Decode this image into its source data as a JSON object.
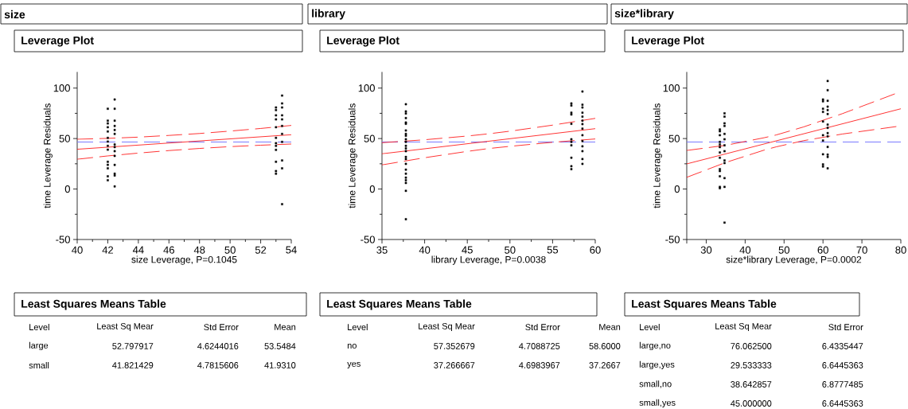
{
  "chart_data": [
    {
      "type": "scatter",
      "title": "size",
      "subtitle": "Leverage Plot",
      "xlabel": "size Leverage, P=0.1045",
      "ylabel": "time Leverage Residuals",
      "xlim": [
        40,
        54
      ],
      "xticks": [
        40,
        42,
        44,
        46,
        48,
        50,
        52,
        54
      ],
      "ylim": [
        -50,
        116
      ],
      "yticks": [
        -50,
        0,
        50,
        100
      ],
      "series": [
        {
          "marker": "square",
          "color": "#000000",
          "x": [
            42.0,
            42.0,
            42.0,
            42.0,
            42.0,
            42.0,
            42.0,
            42.0,
            42.0,
            42.0,
            42.0,
            42.0,
            42.0,
            42.0,
            42.45,
            42.45,
            42.45,
            42.45,
            42.45,
            42.45,
            42.45,
            42.45,
            42.45,
            42.45,
            42.45,
            42.45,
            42.45,
            42.45,
            53.0,
            53.0,
            53.0,
            53.0,
            53.0,
            53.0,
            53.0,
            53.0,
            53.0,
            53.0,
            53.0,
            53.0,
            53.4,
            53.4,
            53.4,
            53.4,
            53.4,
            53.4,
            53.4,
            53.4,
            53.4,
            53.4,
            53.4
          ],
          "values": [
            79.5,
            67.7,
            65,
            61.2,
            57,
            50.7,
            47,
            42.8,
            39,
            27,
            24,
            20.5,
            12.6,
            8.7,
            88.7,
            79.5,
            67.7,
            62.5,
            58.5,
            54.6,
            44.1,
            41.5,
            37.5,
            32.8,
            23.9,
            15.2,
            13.4,
            2.6,
            80.8,
            78.2,
            73,
            69,
            61.2,
            50.7,
            45.4,
            42.8,
            38.8,
            27,
            17.8,
            15.2,
            92.6,
            84.8,
            80.8,
            73,
            69,
            62.5,
            54.6,
            46.7,
            28.3,
            20.5,
            -15
          ]
        },
        {
          "type": "line",
          "color": "#ff0000",
          "x": [
            40,
            54
          ],
          "values": [
            39.4,
            53.8
          ]
        },
        {
          "type": "line",
          "color": "#ff0000",
          "line_style": "dashed",
          "x": [
            40,
            42,
            44,
            46,
            48,
            50,
            52,
            54
          ],
          "values": [
            49.3,
            50.2,
            51.4,
            53.1,
            55.0,
            57.4,
            60.0,
            63.0
          ]
        },
        {
          "type": "line",
          "color": "#ff0000",
          "line_style": "dashed",
          "x": [
            40,
            42,
            44,
            46,
            48,
            50,
            52,
            54
          ],
          "values": [
            29.5,
            32.8,
            35.6,
            38.1,
            40.2,
            42.0,
            43.4,
            44.6
          ]
        }
      ],
      "ref_lines": [
        {
          "axis": "y",
          "value": 46.7,
          "color": "#7f7fff",
          "line_style": "dashed"
        }
      ],
      "annotations": [
        "Least Squares Means Table",
        "Level",
        "Least Sq Mear",
        "Std Error",
        "Mean",
        "large",
        "52.797917",
        "4.6244016",
        "53.5484",
        "small",
        "41.821429",
        "4.7815606",
        "41.9310"
      ]
    },
    {
      "type": "scatter",
      "title": "library",
      "subtitle": "Leverage Plot",
      "xlabel": "library Leverage, P=0.0038",
      "ylabel": "time Leverage Residuals",
      "xlim": [
        35,
        60
      ],
      "xticks": [
        35,
        40,
        45,
        50,
        55,
        60
      ],
      "ylim": [
        -50,
        116
      ],
      "yticks": [
        -50,
        0,
        50,
        100
      ],
      "series": [
        {
          "marker": "square",
          "color": "#000000",
          "x": [
            37.8,
            37.8,
            37.8,
            37.8,
            37.8,
            37.8,
            37.8,
            37.8,
            37.8,
            37.8,
            37.8,
            37.8,
            37.8,
            37.8,
            37.8,
            37.8,
            37.8,
            37.8,
            37.8,
            37.8,
            37.8,
            37.8,
            37.8,
            37.8,
            57.2,
            57.2,
            57.2,
            57.2,
            57.2,
            57.2,
            57.2,
            57.2,
            57.2,
            57.2,
            57.2,
            58.5,
            58.5,
            58.5,
            58.5,
            58.5,
            58.5,
            58.5,
            58.5,
            58.5,
            58.5,
            58.5,
            58.5,
            58.5,
            58.5
          ],
          "values": [
            84,
            76.9,
            74.8,
            70.3,
            65.9,
            64.6,
            58,
            54.6,
            52.8,
            49.3,
            46.7,
            42.8,
            40.2,
            37.5,
            31.8,
            29.7,
            24.9,
            19.2,
            15.2,
            11.3,
            8.7,
            6,
            -1.8,
            -29.9,
            84.8,
            82.7,
            75.6,
            73.8,
            64.6,
            49.3,
            46.7,
            43.3,
            31,
            22.6,
            19.7,
            96.6,
            83.5,
            80.8,
            75.6,
            71.7,
            67.7,
            64.3,
            59.8,
            53.3,
            47.5,
            42.3,
            37.5,
            29.7,
            24.9
          ]
        },
        {
          "type": "line",
          "color": "#ff0000",
          "x": [
            35,
            60
          ],
          "values": [
            34.9,
            59.8
          ]
        },
        {
          "type": "line",
          "color": "#ff0000",
          "line_style": "dashed",
          "x": [
            35,
            40,
            45,
            47.5,
            50,
            55,
            60
          ],
          "values": [
            45.9,
            48.8,
            52.5,
            54.7,
            57.3,
            63.3,
            70.0
          ]
        },
        {
          "type": "line",
          "color": "#ff0000",
          "line_style": "dashed",
          "x": [
            35,
            40,
            45,
            47.5,
            50,
            55,
            60
          ],
          "values": [
            23.9,
            31.0,
            37.3,
            40.1,
            42.3,
            46.3,
            49.6
          ]
        }
      ],
      "ref_lines": [
        {
          "axis": "y",
          "value": 46.7,
          "color": "#7f7fff",
          "line_style": "dashed"
        }
      ],
      "annotations": [
        "Least Squares Means Table",
        "Level",
        "Least Sq Mear",
        "Std Error",
        "Mean",
        "no",
        "57.352679",
        "4.7088725",
        "58.6000",
        "yes",
        "37.266667",
        "4.6983967",
        "37.2667"
      ]
    },
    {
      "type": "scatter",
      "title": "size*library",
      "subtitle": "Leverage Plot",
      "xlabel": "size*library Leverage, P=0.0002",
      "ylabel": "time Leverage Residuals",
      "xlim": [
        25,
        80
      ],
      "xticks": [
        {
          "value": 25,
          "label": null
        },
        30,
        40,
        50,
        60,
        70,
        80
      ],
      "ylim": [
        -50,
        116
      ],
      "yticks": [
        -50,
        0,
        50,
        100
      ],
      "series": [
        {
          "marker": "square",
          "color": "#000000",
          "x": [
            33.5,
            33.5,
            33.5,
            33.5,
            33.5,
            33.5,
            33.5,
            33.5,
            33.5,
            33.5,
            33.5,
            33.5,
            33.5,
            34.7,
            34.7,
            34.7,
            34.7,
            34.7,
            34.7,
            34.7,
            34.7,
            34.7,
            34.7,
            34.7,
            34.7,
            34.7,
            60,
            60,
            60,
            60,
            60,
            60,
            60,
            60,
            60,
            60,
            61.2,
            61.2,
            61.2,
            61.2,
            61.2,
            61.2,
            61.2,
            61.2,
            61.2,
            61.2,
            61.2,
            61.2,
            61.2,
            61.2
          ],
          "values": [
            59,
            57.2,
            53.3,
            46.7,
            44.1,
            41.5,
            36.2,
            31,
            19.7,
            17.8,
            12.6,
            2.1,
            0.8,
            75,
            71.7,
            65.1,
            62.5,
            54.6,
            49.3,
            43.3,
            37.5,
            28.3,
            25.7,
            10.8,
            2.1,
            -33.3,
            88.7,
            86.9,
            79.5,
            76.4,
            66.9,
            53.3,
            48,
            34.4,
            24.4,
            22.3,
            107,
            97.9,
            87.4,
            81.6,
            78.2,
            74.3,
            63.8,
            60.6,
            55.4,
            52.2,
            41.7,
            34.1,
            31.8,
            20.5
          ]
        },
        {
          "type": "line",
          "color": "#ff0000",
          "x": [
            25,
            80
          ],
          "values": [
            24.9,
            79.5
          ]
        },
        {
          "type": "line",
          "color": "#ff0000",
          "line_style": "dashed",
          "x": [
            25,
            35,
            45,
            48,
            55,
            65,
            80
          ],
          "values": [
            38.2,
            43.3,
            50.9,
            53.6,
            61.5,
            74.7,
            96.5
          ]
        },
        {
          "type": "line",
          "color": "#ff0000",
          "line_style": "dashed",
          "x": [
            25,
            35,
            45,
            48,
            55,
            65,
            80
          ],
          "values": [
            11.6,
            26.3,
            38.7,
            41.8,
            47.9,
            54.5,
            62.5
          ]
        }
      ],
      "ref_lines": [
        {
          "axis": "y",
          "value": 46.7,
          "color": "#7f7fff",
          "line_style": "dashed"
        }
      ],
      "annotations": [
        "Least Squares Means Table",
        "Level",
        "Least Sq Mear",
        "Std Error",
        "large,no",
        "76.062500",
        "6.4335447",
        "large,yes",
        "29.533333",
        "6.6445363",
        "small,no",
        "38.642857",
        "6.8777485",
        "small,yes",
        "45.000000",
        "6.6445363"
      ]
    }
  ]
}
